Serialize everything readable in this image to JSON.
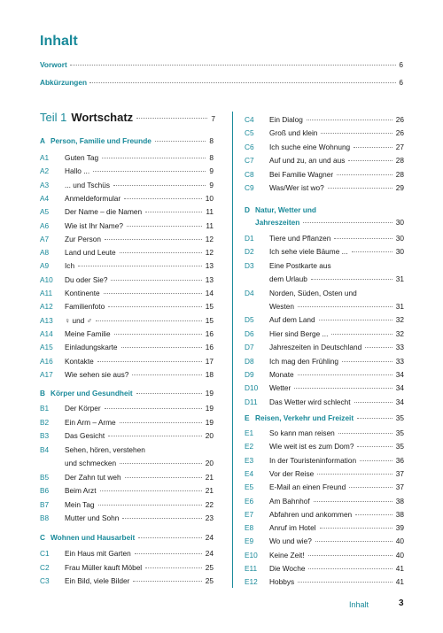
{
  "title": "Inhalt",
  "front": [
    {
      "label": "Vorwort",
      "page": "6"
    },
    {
      "label": "Abkürzungen",
      "page": "6"
    }
  ],
  "part": {
    "label": "Teil 1",
    "name": "Wortschatz",
    "page": "7"
  },
  "left": {
    "A": {
      "letter": "A",
      "name": "Person, Familie und Freunde",
      "page": "8",
      "entries": [
        {
          "code": "A1",
          "title": "Guten Tag",
          "page": "8"
        },
        {
          "code": "A2",
          "title": "Hallo ...",
          "page": "9"
        },
        {
          "code": "A3",
          "title": "... und Tschüs",
          "page": "9"
        },
        {
          "code": "A4",
          "title": "Anmeldeformular",
          "page": "10"
        },
        {
          "code": "A5",
          "title": "Der Name – die Namen",
          "page": "11"
        },
        {
          "code": "A6",
          "title": "Wie ist Ihr Name?",
          "page": "11"
        },
        {
          "code": "A7",
          "title": "Zur Person",
          "page": "12"
        },
        {
          "code": "A8",
          "title": "Land und Leute",
          "page": "12"
        },
        {
          "code": "A9",
          "title": "Ich",
          "page": "13"
        },
        {
          "code": "A10",
          "title": "Du oder Sie?",
          "page": "13"
        },
        {
          "code": "A11",
          "title": "Kontinente",
          "page": "14"
        },
        {
          "code": "A12",
          "title": "Familienfoto",
          "page": "15"
        },
        {
          "code": "A13",
          "title": "♀ und ♂",
          "page": "15"
        },
        {
          "code": "A14",
          "title": "Meine Familie",
          "page": "16"
        },
        {
          "code": "A15",
          "title": "Einladungskarte",
          "page": "16"
        },
        {
          "code": "A16",
          "title": "Kontakte",
          "page": "17"
        },
        {
          "code": "A17",
          "title": "Wie sehen sie aus?",
          "page": "18"
        }
      ]
    },
    "B": {
      "letter": "B",
      "name": "Körper und Gesundheit",
      "page": "19",
      "entries": [
        {
          "code": "B1",
          "title": "Der Körper",
          "page": "19"
        },
        {
          "code": "B2",
          "title": "Ein Arm – Arme",
          "page": "19"
        },
        {
          "code": "B3",
          "title": "Das Gesicht",
          "page": "20"
        },
        {
          "code": "B4",
          "title": "Sehen, hören, verstehen",
          "page": ""
        },
        {
          "code": "",
          "title": "und schmecken",
          "page": "20"
        },
        {
          "code": "B5",
          "title": "Der Zahn tut weh",
          "page": "21"
        },
        {
          "code": "B6",
          "title": "Beim Arzt",
          "page": "21"
        },
        {
          "code": "B7",
          "title": "Mein Tag",
          "page": "22"
        },
        {
          "code": "B8",
          "title": "Mutter und Sohn",
          "page": "23"
        }
      ]
    },
    "C": {
      "letter": "C",
      "name": "Wohnen und Hausarbeit",
      "page": "24",
      "entries": [
        {
          "code": "C1",
          "title": "Ein Haus mit Garten",
          "page": "24"
        },
        {
          "code": "C2",
          "title": "Frau Müller kauft Möbel",
          "page": "25"
        },
        {
          "code": "C3",
          "title": "Ein Bild, viele Bilder",
          "page": "25"
        }
      ]
    }
  },
  "right": {
    "C_cont": [
      {
        "code": "C4",
        "title": "Ein Dialog",
        "page": "26"
      },
      {
        "code": "C5",
        "title": "Groß und klein",
        "page": "26"
      },
      {
        "code": "C6",
        "title": "Ich suche eine Wohnung",
        "page": "27"
      },
      {
        "code": "C7",
        "title": "Auf und zu, an und aus",
        "page": "28"
      },
      {
        "code": "C8",
        "title": "Bei Familie Wagner",
        "page": "28"
      },
      {
        "code": "C9",
        "title": "Was/Wer ist wo?",
        "page": "29"
      }
    ],
    "D": {
      "letter": "D",
      "name1": "Natur, Wetter und",
      "name2": "Jahreszeiten",
      "page": "30",
      "entries": [
        {
          "code": "D1",
          "title": "Tiere und Pflanzen",
          "page": "30"
        },
        {
          "code": "D2",
          "title": "Ich sehe viele Bäume ...",
          "page": "30"
        },
        {
          "code": "D3",
          "title": "Eine Postkarte aus",
          "page": ""
        },
        {
          "code": "",
          "title": "dem Urlaub",
          "page": "31"
        },
        {
          "code": "D4",
          "title": "Norden, Süden, Osten und",
          "page": ""
        },
        {
          "code": "",
          "title": "Westen",
          "page": "31"
        },
        {
          "code": "D5",
          "title": "Auf dem Land",
          "page": "32"
        },
        {
          "code": "D6",
          "title": "Hier sind Berge ...",
          "page": "32"
        },
        {
          "code": "D7",
          "title": "Jahreszeiten in Deutschland",
          "page": "33"
        },
        {
          "code": "D8",
          "title": "Ich mag den Frühling",
          "page": "33"
        },
        {
          "code": "D9",
          "title": "Monate",
          "page": "34"
        },
        {
          "code": "D10",
          "title": "Wetter",
          "page": "34"
        },
        {
          "code": "D11",
          "title": "Das Wetter wird schlecht",
          "page": "34"
        }
      ]
    },
    "E": {
      "letter": "E",
      "name": "Reisen, Verkehr und Freizeit",
      "page": "35",
      "entries": [
        {
          "code": "E1",
          "title": "So kann man reisen",
          "page": "35"
        },
        {
          "code": "E2",
          "title": "Wie weit ist es zum Dom?",
          "page": "35"
        },
        {
          "code": "E3",
          "title": "In der Touristeninformation",
          "page": "36"
        },
        {
          "code": "E4",
          "title": "Vor der Reise",
          "page": "37"
        },
        {
          "code": "E5",
          "title": "E-Mail an einen Freund",
          "page": "37"
        },
        {
          "code": "E6",
          "title": "Am Bahnhof",
          "page": "38"
        },
        {
          "code": "E7",
          "title": "Abfahren und ankommen",
          "page": "38"
        },
        {
          "code": "E8",
          "title": "Anruf im Hotel",
          "page": "39"
        },
        {
          "code": "E9",
          "title": "Wo und wie?",
          "page": "40"
        },
        {
          "code": "E10",
          "title": "Keine Zeit!",
          "page": "40"
        },
        {
          "code": "E11",
          "title": "Die Woche",
          "page": "41"
        },
        {
          "code": "E12",
          "title": "Hobbys",
          "page": "41"
        }
      ]
    }
  },
  "footer": {
    "label": "Inhalt",
    "page": "3"
  },
  "colors": {
    "accent": "#1a8a9a",
    "text": "#1a1a1a"
  }
}
